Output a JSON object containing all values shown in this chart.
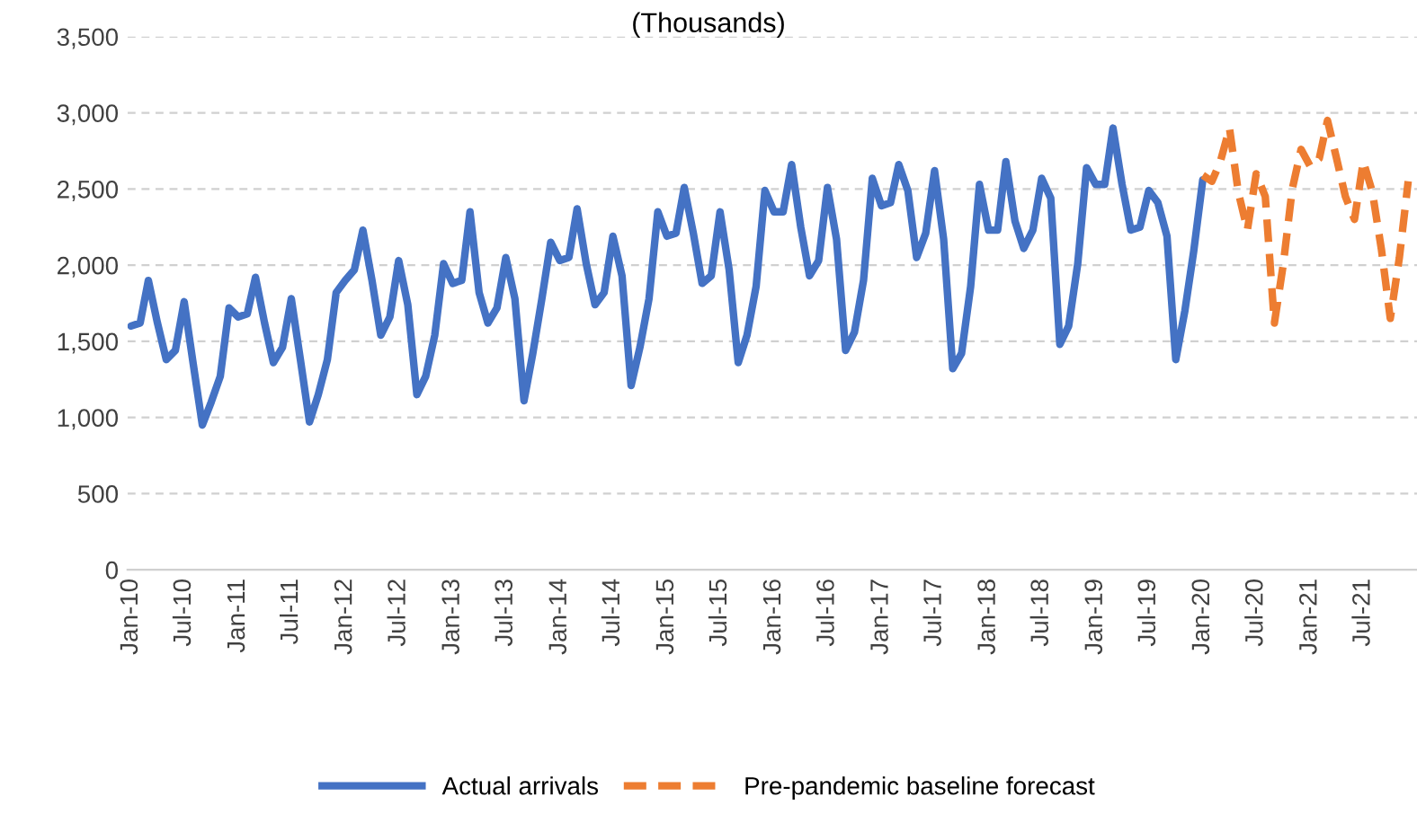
{
  "chart_data": {
    "type": "line",
    "subtitle": "(Thousands)",
    "xlim": [
      "2009-12-20",
      "2021-12-31"
    ],
    "xticks": [
      {
        "value": "2010-01",
        "label": "Jan-10"
      },
      {
        "value": "2010-07",
        "label": "Jul-10"
      },
      {
        "value": "2011-01",
        "label": "Jan-11"
      },
      {
        "value": "2011-07",
        "label": "Jul-11"
      },
      {
        "value": "2012-01",
        "label": "Jan-12"
      },
      {
        "value": "2012-07",
        "label": "Jul-12"
      },
      {
        "value": "2013-01",
        "label": "Jan-13"
      },
      {
        "value": "2013-07",
        "label": "Jul-13"
      },
      {
        "value": "2014-01",
        "label": "Jan-14"
      },
      {
        "value": "2014-07",
        "label": "Jul-14"
      },
      {
        "value": "2015-01",
        "label": "Jan-15"
      },
      {
        "value": "2015-07",
        "label": "Jul-15"
      },
      {
        "value": "2016-01",
        "label": "Jan-16"
      },
      {
        "value": "2016-07",
        "label": "Jul-16"
      },
      {
        "value": "2017-01",
        "label": "Jan-17"
      },
      {
        "value": "2017-07",
        "label": "Jul-17"
      },
      {
        "value": "2018-01",
        "label": "Jan-18"
      },
      {
        "value": "2018-07",
        "label": "Jul-18"
      },
      {
        "value": "2019-01",
        "label": "Jan-19"
      },
      {
        "value": "2019-07",
        "label": "Jul-19"
      },
      {
        "value": "2020-01",
        "label": "Jan-20"
      },
      {
        "value": "2020-07",
        "label": "Jul-20"
      },
      {
        "value": "2021-01",
        "label": "Jan-21"
      },
      {
        "value": "2021-07",
        "label": "Jul-21"
      }
    ],
    "ylim": [
      0,
      3500
    ],
    "yticks": [
      {
        "value": 0,
        "label": "0"
      },
      {
        "value": 500,
        "label": "500"
      },
      {
        "value": 1000,
        "label": "1,000"
      },
      {
        "value": 1500,
        "label": "1,500"
      },
      {
        "value": 2000,
        "label": "2,000"
      },
      {
        "value": 2500,
        "label": "2,500"
      },
      {
        "value": 3000,
        "label": "3,000"
      },
      {
        "value": 3500,
        "label": "3,500"
      }
    ],
    "grid": "y",
    "legend": "bottom",
    "marker": "none",
    "series": [
      {
        "name": "Actual arrivals",
        "color": "#4472c4",
        "line_style": "solid",
        "x": [
          "2010-01",
          "2010-02",
          "2010-03",
          "2010-04",
          "2010-05",
          "2010-06",
          "2010-07",
          "2010-08",
          "2010-09",
          "2010-10",
          "2010-11",
          "2010-12",
          "2011-01",
          "2011-02",
          "2011-03",
          "2011-04",
          "2011-05",
          "2011-06",
          "2011-07",
          "2011-08",
          "2011-09",
          "2011-10",
          "2011-11",
          "2011-12",
          "2012-01",
          "2012-02",
          "2012-03",
          "2012-04",
          "2012-05",
          "2012-06",
          "2012-07",
          "2012-08",
          "2012-09",
          "2012-10",
          "2012-11",
          "2012-12",
          "2013-01",
          "2013-02",
          "2013-03",
          "2013-04",
          "2013-05",
          "2013-06",
          "2013-07",
          "2013-08",
          "2013-09",
          "2013-10",
          "2013-11",
          "2013-12",
          "2014-01",
          "2014-02",
          "2014-03",
          "2014-04",
          "2014-05",
          "2014-06",
          "2014-07",
          "2014-08",
          "2014-09",
          "2014-10",
          "2014-11",
          "2014-12",
          "2015-01",
          "2015-02",
          "2015-03",
          "2015-04",
          "2015-05",
          "2015-06",
          "2015-07",
          "2015-08",
          "2015-09",
          "2015-10",
          "2015-11",
          "2015-12",
          "2016-01",
          "2016-02",
          "2016-03",
          "2016-04",
          "2016-05",
          "2016-06",
          "2016-07",
          "2016-08",
          "2016-09",
          "2016-10",
          "2016-11",
          "2016-12",
          "2017-01",
          "2017-02",
          "2017-03",
          "2017-04",
          "2017-05",
          "2017-06",
          "2017-07",
          "2017-08",
          "2017-09",
          "2017-10",
          "2017-11",
          "2017-12",
          "2018-01",
          "2018-02",
          "2018-03",
          "2018-04",
          "2018-05",
          "2018-06",
          "2018-07",
          "2018-08",
          "2018-09",
          "2018-10",
          "2018-11",
          "2018-12",
          "2019-01",
          "2019-02",
          "2019-03",
          "2019-04",
          "2019-05",
          "2019-06",
          "2019-07",
          "2019-08",
          "2019-09",
          "2019-10",
          "2019-11",
          "2019-12",
          "2020-01"
        ],
        "values": [
          1600,
          1620,
          1900,
          1620,
          1380,
          1440,
          1760,
          1350,
          950,
          1100,
          1270,
          1720,
          1660,
          1680,
          1920,
          1620,
          1360,
          1460,
          1780,
          1380,
          970,
          1150,
          1380,
          1820,
          1900,
          1970,
          2230,
          1900,
          1540,
          1660,
          2030,
          1740,
          1150,
          1270,
          1540,
          2010,
          1880,
          1900,
          2350,
          1820,
          1620,
          1720,
          2050,
          1780,
          1110,
          1420,
          1780,
          2150,
          2030,
          2050,
          2370,
          2010,
          1740,
          1820,
          2190,
          1930,
          1210,
          1460,
          1780,
          2350,
          2190,
          2210,
          2510,
          2210,
          1880,
          1930,
          2350,
          1970,
          1360,
          1540,
          1860,
          2490,
          2350,
          2350,
          2660,
          2250,
          1930,
          2030,
          2510,
          2170,
          1440,
          1560,
          1900,
          2570,
          2390,
          2410,
          2660,
          2490,
          2050,
          2210,
          2620,
          2170,
          1320,
          1420,
          1860,
          2530,
          2230,
          2230,
          2680,
          2290,
          2110,
          2230,
          2570,
          2440,
          1480,
          1600,
          2010,
          2640,
          2530,
          2530,
          2900,
          2530,
          2230,
          2250,
          2490,
          2410,
          2190,
          1380,
          1700,
          2090,
          2560
        ]
      },
      {
        "name": "Pre-pandemic baseline forecast",
        "color": "#ed7d31",
        "line_style": "dashed",
        "x": [
          "2020-01",
          "2020-02",
          "2020-03",
          "2020-04",
          "2020-05",
          "2020-06",
          "2020-07",
          "2020-08",
          "2020-09",
          "2020-10",
          "2020-11",
          "2020-12",
          "2021-01",
          "2021-02",
          "2021-03",
          "2021-04",
          "2021-05",
          "2021-06",
          "2021-07",
          "2021-08",
          "2021-09",
          "2021-10",
          "2021-11",
          "2021-12"
        ],
        "values": [
          2590,
          2550,
          2680,
          2900,
          2480,
          2230,
          2600,
          2450,
          1620,
          2000,
          2500,
          2760,
          2650,
          2700,
          2950,
          2700,
          2450,
          2300,
          2680,
          2480,
          2100,
          1650,
          2050,
          2550
        ]
      }
    ]
  }
}
